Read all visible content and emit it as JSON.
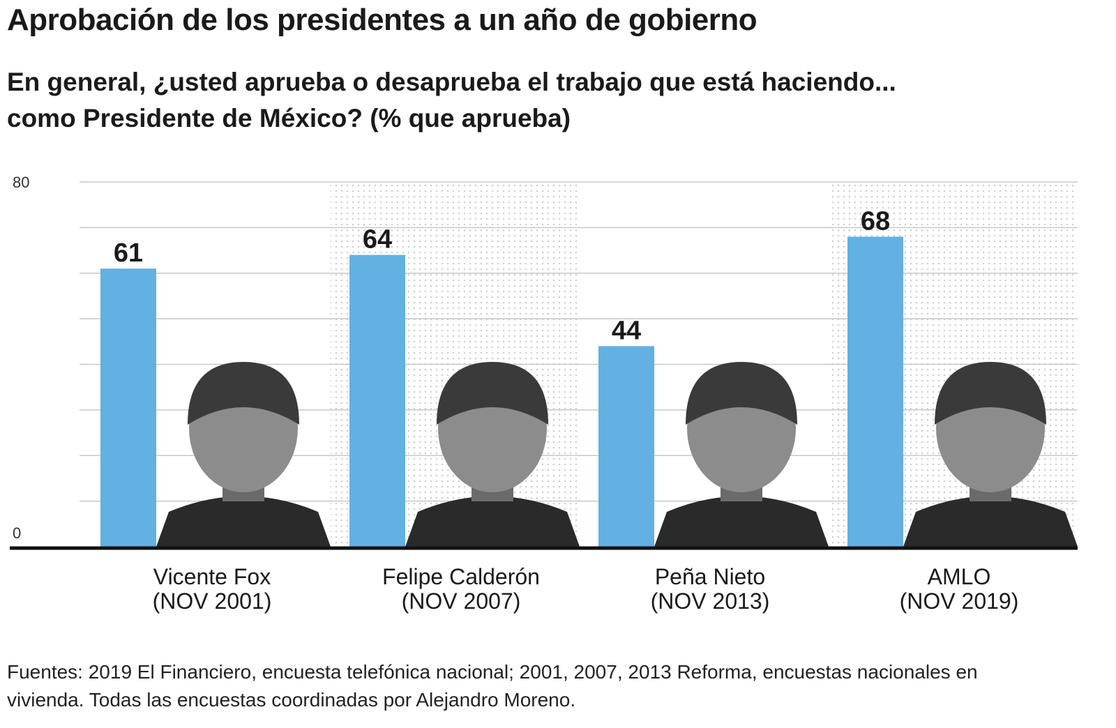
{
  "title": "Aprobación de los presidentes a un año de gobierno",
  "subtitle_lines": [
    "En general, ¿usted aprueba o desaprueba el trabajo que está haciendo...",
    "como Presidente de México?  (% que aprueba)"
  ],
  "source": "Fuentes: 2019 El Financiero, encuesta telefónica nacional; 2001, 2007, 2013 Reforma, encuestas nacionales en vivienda. Todas las encuestas coordinadas por Alejandro Moreno.",
  "colors": {
    "bar": "#63b0e3",
    "grid": "#c8c8c8",
    "baseline": "#111111",
    "dots": "#d0d0d0",
    "photo": "#2a2a2a"
  },
  "chart_data": {
    "type": "bar",
    "title": "Aprobación de los presidentes a un año de gobierno",
    "ylim": [
      0,
      80
    ],
    "yticks": [
      0,
      10,
      20,
      30,
      40,
      50,
      60,
      70,
      80
    ],
    "ytick_labels": [
      "0",
      "80"
    ],
    "grid": true,
    "categories": [
      {
        "name": "Vicente Fox",
        "date": "(NOV 2001)"
      },
      {
        "name": "Felipe Calderón",
        "date": "(NOV 2007)"
      },
      {
        "name": "Peña Nieto",
        "date": "(NOV 2013)"
      },
      {
        "name": "AMLO",
        "date": "(NOV 2019)"
      }
    ],
    "values": [
      61,
      64,
      44,
      68
    ],
    "data_labels": [
      "61",
      "64",
      "44",
      "68"
    ],
    "shaded_columns": [
      false,
      true,
      false,
      true
    ]
  }
}
